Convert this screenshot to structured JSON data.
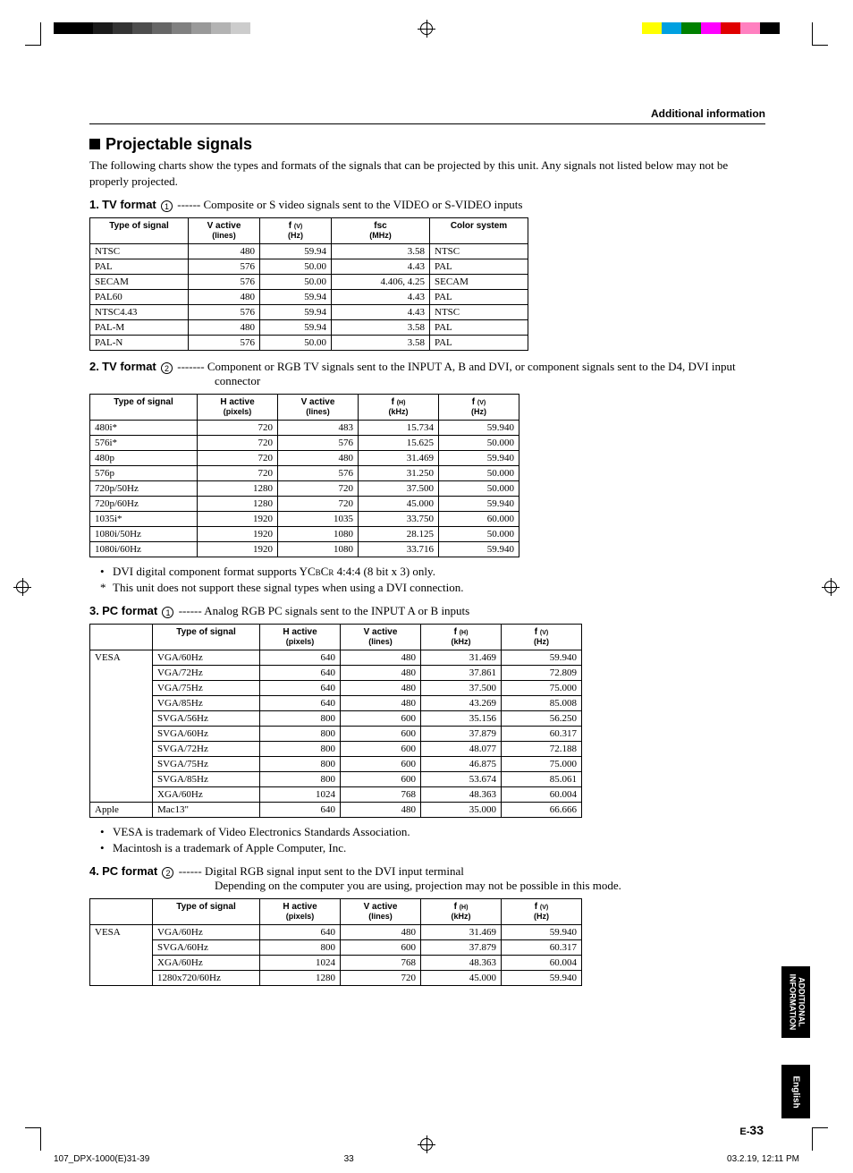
{
  "header": {
    "title": "Additional information"
  },
  "section": {
    "title": "Projectable signals",
    "intro": "The following charts show the types and formats of the signals that can be projected by this unit. Any signals not listed below may not be properly projected."
  },
  "sub1": {
    "num": "1.",
    "label": "TV format",
    "circ": "1",
    "dashes": "------",
    "desc": "Composite or S video signals sent to the VIDEO or S-VIDEO inputs"
  },
  "t1": {
    "cols": [
      "Type of signal",
      "V active",
      "f",
      "fsc",
      "Color system"
    ],
    "subs": [
      "",
      "(lines)",
      "(Hz)",
      "(MHz)",
      ""
    ],
    "ftiny": "(V)",
    "rows": [
      [
        "NTSC",
        "480",
        "59.94",
        "3.58",
        "NTSC"
      ],
      [
        "PAL",
        "576",
        "50.00",
        "4.43",
        "PAL"
      ],
      [
        "SECAM",
        "576",
        "50.00",
        "4.406, 4.25",
        "SECAM"
      ],
      [
        "PAL60",
        "480",
        "59.94",
        "4.43",
        "PAL"
      ],
      [
        "NTSC4.43",
        "576",
        "59.94",
        "4.43",
        "NTSC"
      ],
      [
        "PAL-M",
        "480",
        "59.94",
        "3.58",
        "PAL"
      ],
      [
        "PAL-N",
        "576",
        "50.00",
        "3.58",
        "PAL"
      ]
    ],
    "widths": [
      110,
      80,
      80,
      110,
      110
    ]
  },
  "sub2": {
    "num": "2.",
    "label": "TV format",
    "circ": "2",
    "dashes": "-------",
    "desc": "Component or RGB TV signals sent to the INPUT A, B and DVI, or component signals sent to the D4, DVI input",
    "desc2": "connector"
  },
  "t2": {
    "cols": [
      "Type of signal",
      "H active",
      "V active",
      "f",
      "f"
    ],
    "subs": [
      "",
      "(pixels)",
      "(lines)",
      "(kHz)",
      "(Hz)"
    ],
    "ftiny": [
      "(H)",
      "(V)"
    ],
    "rows": [
      [
        "480i*",
        "720",
        "483",
        "15.734",
        "59.940"
      ],
      [
        "576i*",
        "720",
        "576",
        "15.625",
        "50.000"
      ],
      [
        "480p",
        "720",
        "480",
        "31.469",
        "59.940"
      ],
      [
        "576p",
        "720",
        "576",
        "31.250",
        "50.000"
      ],
      [
        "720p/50Hz",
        "1280",
        "720",
        "37.500",
        "50.000"
      ],
      [
        "720p/60Hz",
        "1280",
        "720",
        "45.000",
        "59.940"
      ],
      [
        "1035i*",
        "1920",
        "1035",
        "33.750",
        "60.000"
      ],
      [
        "1080i/50Hz",
        "1920",
        "1080",
        "28.125",
        "50.000"
      ],
      [
        "1080i/60Hz",
        "1920",
        "1080",
        "33.716",
        "59.940"
      ]
    ],
    "widths": [
      120,
      90,
      90,
      90,
      90
    ]
  },
  "notes2": [
    "DVI digital component format supports YCBCR 4:4:4 (8 bit x 3) only.",
    "This unit does not support these signal types when using a DVI connection."
  ],
  "sub3": {
    "num": "3.",
    "label": "PC format",
    "circ": "1",
    "dashes": "------",
    "desc": "Analog RGB PC signals sent to the INPUT A or B inputs"
  },
  "t3": {
    "cols": [
      "",
      "Type of signal",
      "H active",
      "V active",
      "f",
      "f"
    ],
    "subs": [
      "",
      "",
      "(pixels)",
      "(lines)",
      "(kHz)",
      "(Hz)"
    ],
    "ftiny": [
      "(H)",
      "(V)"
    ],
    "cats": [
      "VESA",
      "Apple"
    ],
    "rows": [
      [
        "VESA",
        "VGA/60Hz",
        "640",
        "480",
        "31.469",
        "59.940"
      ],
      [
        "",
        "VGA/72Hz",
        "640",
        "480",
        "37.861",
        "72.809"
      ],
      [
        "",
        "VGA/75Hz",
        "640",
        "480",
        "37.500",
        "75.000"
      ],
      [
        "",
        "VGA/85Hz",
        "640",
        "480",
        "43.269",
        "85.008"
      ],
      [
        "",
        "SVGA/56Hz",
        "800",
        "600",
        "35.156",
        "56.250"
      ],
      [
        "",
        "SVGA/60Hz",
        "800",
        "600",
        "37.879",
        "60.317"
      ],
      [
        "",
        "SVGA/72Hz",
        "800",
        "600",
        "48.077",
        "72.188"
      ],
      [
        "",
        "SVGA/75Hz",
        "800",
        "600",
        "46.875",
        "75.000"
      ],
      [
        "",
        "SVGA/85Hz",
        "800",
        "600",
        "53.674",
        "85.061"
      ],
      [
        "",
        "XGA/60Hz",
        "1024",
        "768",
        "48.363",
        "60.004"
      ],
      [
        "Apple",
        "Mac13\"",
        "640",
        "480",
        "35.000",
        "66.666"
      ]
    ],
    "widths": [
      70,
      120,
      90,
      90,
      90,
      90
    ]
  },
  "notes3": [
    "VESA is trademark of Video Electronics Standards Association.",
    "Macintosh is a trademark of Apple Computer, Inc."
  ],
  "sub4": {
    "num": "4.",
    "label": "PC format",
    "circ": "2",
    "dashes": "------",
    "desc": "Digital RGB signal input sent to the DVI input terminal",
    "desc2": "Depending on the computer you are using, projection may not be possible in this mode."
  },
  "t4": {
    "cols": [
      "",
      "Type of signal",
      "H active",
      "V active",
      "f",
      "f"
    ],
    "subs": [
      "",
      "",
      "(pixels)",
      "(lines)",
      "(kHz)",
      "(Hz)"
    ],
    "ftiny": [
      "(H)",
      "(V)"
    ],
    "rows": [
      [
        "VESA",
        "VGA/60Hz",
        "640",
        "480",
        "31.469",
        "59.940"
      ],
      [
        "",
        "SVGA/60Hz",
        "800",
        "600",
        "37.879",
        "60.317"
      ],
      [
        "",
        "XGA/60Hz",
        "1024",
        "768",
        "48.363",
        "60.004"
      ],
      [
        "",
        "1280x720/60Hz",
        "1280",
        "720",
        "45.000",
        "59.940"
      ]
    ],
    "widths": [
      70,
      120,
      90,
      90,
      90,
      90
    ]
  },
  "sidetab1": "ADDITIONAL\nINFORMATION",
  "sidetab2": "English",
  "pagenum": {
    "prefix": "E-",
    "num": "33"
  },
  "footer": {
    "left": "107_DPX-1000(E)31-39",
    "mid": "33",
    "right": "03.2.19, 12:11 PM"
  },
  "graybar": [
    "#000",
    "#000",
    "#1a1a1a",
    "#333",
    "#4d4d4d",
    "#666",
    "#808080",
    "#999",
    "#b3b3b3",
    "#ccc"
  ],
  "colorbar": [
    "#ffff00",
    "#00a0e0",
    "#008000",
    "#ff00ff",
    "#e00000",
    "#ff80c0",
    "#000",
    "#fff"
  ]
}
